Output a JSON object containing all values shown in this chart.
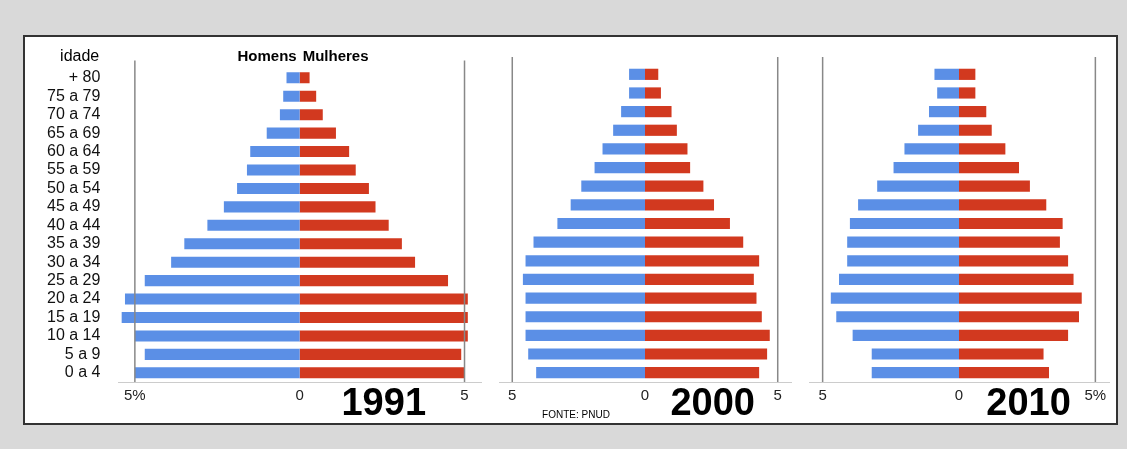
{
  "chart_data": [
    {
      "type": "bar",
      "orientation": "horizontal",
      "stacked": true,
      "title": "1991",
      "ylabel": "idade",
      "categories": [
        "+ 80",
        "75 a 79",
        "70 a 74",
        "65 a 69",
        "60 a 64",
        "55 a 59",
        "50 a 54",
        "45 a 49",
        "40 a 44",
        "35 a 39",
        "30 a 34",
        "25 a 29",
        "20 a 24",
        "15 a 19",
        "10 a 14",
        "5 a 9",
        "0 a 4"
      ],
      "series": [
        {
          "name": "Homens",
          "color": "#5b8fe6",
          "values": [
            -0.4,
            -0.5,
            -0.6,
            -1.0,
            -1.5,
            -1.6,
            -1.9,
            -2.3,
            -2.8,
            -3.5,
            -3.9,
            -4.7,
            -5.3,
            -5.4,
            -5.0,
            -4.7,
            -5.0
          ]
        },
        {
          "name": "Mulheres",
          "color": "#d2391f",
          "values": [
            0.3,
            0.5,
            0.7,
            1.1,
            1.5,
            1.7,
            2.1,
            2.3,
            2.7,
            3.1,
            3.5,
            4.5,
            5.1,
            5.1,
            5.1,
            4.9,
            5.0
          ]
        }
      ],
      "xlim": [
        -5.5,
        5.5
      ],
      "xticks": [
        {
          "value": -5,
          "label": "5%"
        },
        {
          "value": 0,
          "label": "0"
        },
        {
          "value": 5,
          "label": "5"
        }
      ],
      "ref_lines": [
        {
          "axis": "x",
          "value": -5,
          "color": "#888888"
        },
        {
          "axis": "x",
          "value": 5,
          "color": "#888888"
        }
      ]
    },
    {
      "type": "bar",
      "orientation": "horizontal",
      "stacked": true,
      "title": "2000",
      "tick_labels": "x",
      "categories": [
        null,
        null,
        null,
        null,
        null,
        null,
        null,
        null,
        null,
        null,
        null,
        null,
        null,
        null,
        null,
        null,
        null
      ],
      "series": [
        {
          "color": "#5b8fe6",
          "values": [
            -0.6,
            -0.6,
            -0.9,
            -1.2,
            -1.6,
            -1.9,
            -2.4,
            -2.8,
            -3.3,
            -4.2,
            -4.5,
            -4.6,
            -4.5,
            -4.5,
            -4.5,
            -4.4,
            -4.1
          ]
        },
        {
          "color": "#d2391f",
          "values": [
            0.5,
            0.6,
            1.0,
            1.2,
            1.6,
            1.7,
            2.2,
            2.6,
            3.2,
            3.7,
            4.3,
            4.1,
            4.2,
            4.4,
            4.7,
            4.6,
            4.3
          ]
        }
      ],
      "xlim": [
        -5.5,
        5.5
      ],
      "xticks": [
        {
          "value": -5,
          "label": "5"
        },
        {
          "value": 0,
          "label": "0"
        },
        {
          "value": 5,
          "label": "5"
        }
      ],
      "annotations": [
        "FONTE: PNUD"
      ],
      "ref_lines": [
        {
          "axis": "x",
          "value": -5,
          "color": "#888888"
        },
        {
          "axis": "x",
          "value": 5,
          "color": "#888888"
        }
      ]
    },
    {
      "type": "bar",
      "orientation": "horizontal",
      "stacked": true,
      "title": "2010",
      "tick_labels": "x",
      "categories": [
        null,
        null,
        null,
        null,
        null,
        null,
        null,
        null,
        null,
        null,
        null,
        null,
        null,
        null,
        null,
        null,
        null
      ],
      "series": [
        {
          "color": "#5b8fe6",
          "values": [
            -0.9,
            -0.8,
            -1.1,
            -1.5,
            -2.0,
            -2.4,
            -3.0,
            -3.7,
            -4.0,
            -4.1,
            -4.1,
            -4.4,
            -4.7,
            -4.5,
            -3.9,
            -3.2,
            -3.2
          ]
        },
        {
          "color": "#d2391f",
          "values": [
            0.6,
            0.6,
            1.0,
            1.2,
            1.7,
            2.2,
            2.6,
            3.2,
            3.8,
            3.7,
            4.0,
            4.2,
            4.5,
            4.4,
            4.0,
            3.1,
            3.3
          ]
        }
      ],
      "xlim": [
        -5.5,
        5.5
      ],
      "xticks": [
        {
          "value": -5,
          "label": "5"
        },
        {
          "value": 0,
          "label": "0"
        },
        {
          "value": 5,
          "label": "5%"
        }
      ],
      "ref_lines": [
        {
          "axis": "x",
          "value": -5,
          "color": "#888888"
        },
        {
          "axis": "x",
          "value": 5,
          "color": "#888888"
        }
      ]
    }
  ]
}
